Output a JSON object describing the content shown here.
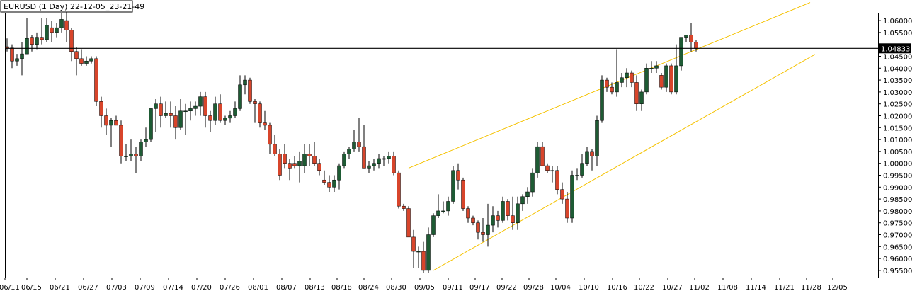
{
  "window": {
    "title": "EURUSD (1 Day) 22-12-05_23-21-49"
  },
  "colors": {
    "bull": "#1e5b34",
    "bear": "#d8452b",
    "wick": "#000000",
    "channel": "#f5c200",
    "price_line": "#000000",
    "price_tag_bg": "#000000"
  },
  "chart_data": {
    "type": "candlestick",
    "title": "EURUSD (1 Day) 22-12-05_23-21-49",
    "symbol": "EURUSD",
    "timeframe": "1 Day",
    "current_price": "1.04833",
    "ylim": [
      0.952,
      1.063
    ],
    "yticks": [
      "1.06000",
      "1.05500",
      "1.05000",
      "1.04500",
      "1.04000",
      "1.03500",
      "1.03000",
      "1.02500",
      "1.02000",
      "1.01500",
      "1.01000",
      "1.00500",
      "1.00000",
      "0.99500",
      "0.99000",
      "0.98500",
      "0.98000",
      "0.97500",
      "0.97000",
      "0.96500",
      "0.96000",
      "0.95500"
    ],
    "xticks": [
      "06/11",
      "06/15",
      "06/21",
      "06/27",
      "07/03",
      "07/09",
      "07/14",
      "07/20",
      "07/26",
      "08/01",
      "08/07",
      "08/13",
      "08/18",
      "08/24",
      "08/30",
      "09/05",
      "09/11",
      "09/17",
      "09/22",
      "09/28",
      "10/04",
      "10/10",
      "10/16",
      "10/22",
      "10/27",
      "11/02",
      "11/08",
      "11/14",
      "11/21",
      "11/28",
      "12/05"
    ],
    "candles": [
      [
        1.049,
        1.0525,
        1.047,
        1.0485
      ],
      [
        1.0485,
        1.05,
        1.04,
        1.043
      ],
      [
        1.043,
        1.046,
        1.041,
        1.044
      ],
      [
        1.044,
        1.051,
        1.037,
        1.046
      ],
      [
        1.046,
        1.061,
        1.046,
        1.0525
      ],
      [
        1.053,
        1.054,
        1.047,
        1.05
      ],
      [
        1.05,
        1.055,
        1.048,
        1.053
      ],
      [
        1.053,
        1.061,
        1.05,
        1.052
      ],
      [
        1.052,
        1.061,
        1.051,
        1.058
      ],
      [
        1.057,
        1.06,
        1.051,
        1.055
      ],
      [
        1.055,
        1.059,
        1.053,
        1.057
      ],
      [
        1.057,
        1.063,
        1.055,
        1.0605
      ],
      [
        1.06,
        1.064,
        1.051,
        1.056
      ],
      [
        1.056,
        1.057,
        1.043,
        1.047
      ],
      [
        1.047,
        1.049,
        1.037,
        1.044
      ],
      [
        1.044,
        1.048,
        1.041,
        1.042
      ],
      [
        1.042,
        1.045,
        1.041,
        1.043
      ],
      [
        1.043,
        1.045,
        1.042,
        1.044
      ],
      [
        1.044,
        1.045,
        1.024,
        1.026
      ],
      [
        1.026,
        1.028,
        1.015,
        1.02
      ],
      [
        1.02,
        1.023,
        1.012,
        1.016
      ],
      [
        1.016,
        1.019,
        1.007,
        1.018
      ],
      [
        1.018,
        1.02,
        1.016,
        1.016
      ],
      [
        1.016,
        1.018,
        1.0,
        1.003
      ],
      [
        1.003,
        1.008,
        1.001,
        1.003
      ],
      [
        1.003,
        1.01,
        1.001,
        1.004
      ],
      [
        1.004,
        1.007,
        0.996,
        1.003
      ],
      [
        1.003,
        1.01,
        1.001,
        1.009
      ],
      [
        1.009,
        1.015,
        1.007,
        1.01
      ],
      [
        1.01,
        1.023,
        1.009,
        1.023
      ],
      [
        1.023,
        1.027,
        1.013,
        1.025
      ],
      [
        1.025,
        1.028,
        1.015,
        1.02
      ],
      [
        1.02,
        1.026,
        1.019,
        1.021
      ],
      [
        1.021,
        1.026,
        1.015,
        1.02
      ],
      [
        1.02,
        1.024,
        1.01,
        1.015
      ],
      [
        1.015,
        1.027,
        1.014,
        1.022
      ],
      [
        1.022,
        1.025,
        1.012,
        1.022
      ],
      [
        1.022,
        1.026,
        1.018,
        1.023
      ],
      [
        1.023,
        1.026,
        1.02,
        1.024
      ],
      [
        1.024,
        1.03,
        1.02,
        1.028
      ],
      [
        1.028,
        1.03,
        1.015,
        1.02
      ],
      [
        1.02,
        1.022,
        1.013,
        1.018
      ],
      [
        1.018,
        1.028,
        1.016,
        1.025
      ],
      [
        1.025,
        1.029,
        1.017,
        1.018
      ],
      [
        1.018,
        1.02,
        1.016,
        1.019
      ],
      [
        1.019,
        1.022,
        1.017,
        1.02
      ],
      [
        1.02,
        1.026,
        1.019,
        1.023
      ],
      [
        1.023,
        1.037,
        1.022,
        1.033
      ],
      [
        1.033,
        1.037,
        1.029,
        1.035
      ],
      [
        1.035,
        1.036,
        1.025,
        1.026
      ],
      [
        1.026,
        1.027,
        1.017,
        1.025
      ],
      [
        1.025,
        1.026,
        1.015,
        1.017
      ],
      [
        1.017,
        1.022,
        1.014,
        1.016
      ],
      [
        1.016,
        1.017,
        1.004,
        1.008
      ],
      [
        1.008,
        1.012,
        1.003,
        1.004
      ],
      [
        1.004,
        1.006,
        0.993,
        0.995
      ],
      [
        1.004,
        1.008,
        0.998,
        1.0
      ],
      [
        1.0,
        1.002,
        0.993,
        0.998
      ],
      [
        1.0,
        1.003,
        0.998,
        0.999
      ],
      [
        0.999,
        1.005,
        0.992,
        1.001
      ],
      [
        0.999,
        1.008,
        0.996,
        1.004
      ],
      [
        1.004,
        1.008,
        0.999,
        1.003
      ],
      [
        1.003,
        1.009,
        0.999,
        1.0
      ],
      [
        1.0,
        1.002,
        0.995,
        0.997
      ],
      [
        0.993,
        0.997,
        0.991,
        0.992
      ],
      [
        0.992,
        0.995,
        0.988,
        0.99
      ],
      [
        0.99,
        0.995,
        0.988,
        0.993
      ],
      [
        0.993,
        1.0,
        0.989,
        0.999
      ],
      [
        0.999,
        1.005,
        0.998,
        1.004
      ],
      [
        1.004,
        1.007,
        1.002,
        1.006
      ],
      [
        1.006,
        1.014,
        1.005,
        1.009
      ],
      [
        1.009,
        1.019,
        1.005,
        1.007
      ],
      [
        1.007,
        1.016,
        0.998,
        0.998
      ],
      [
        0.998,
        1.001,
        0.996,
        0.999
      ],
      [
        0.999,
        1.002,
        0.997,
        1.0
      ],
      [
        1.0,
        1.004,
        0.998,
        1.002
      ],
      [
        1.002,
        1.003,
        0.999,
        1.002
      ],
      [
        1.002,
        1.005,
        1.0,
        1.003
      ],
      [
        1.003,
        1.005,
        0.995,
        0.996
      ],
      [
        0.996,
        0.997,
        0.981,
        0.982
      ],
      [
        0.982,
        0.983,
        0.98,
        0.981
      ],
      [
        0.981,
        0.982,
        0.969,
        0.969
      ],
      [
        0.969,
        0.972,
        0.956,
        0.963
      ],
      [
        0.963,
        0.965,
        0.956,
        0.963
      ],
      [
        0.963,
        0.967,
        0.954,
        0.955
      ],
      [
        0.955,
        0.973,
        0.954,
        0.97
      ],
      [
        0.97,
        0.979,
        0.969,
        0.978
      ],
      [
        0.978,
        0.987,
        0.977,
        0.98
      ],
      [
        0.98,
        0.984,
        0.979,
        0.98
      ],
      [
        0.98,
        0.986,
        0.978,
        0.984
      ],
      [
        0.984,
        0.999,
        0.983,
        0.997
      ],
      [
        0.997,
        1.0,
        0.989,
        0.993
      ],
      [
        0.993,
        0.994,
        0.98,
        0.981
      ],
      [
        0.981,
        0.982,
        0.975,
        0.977
      ],
      [
        0.977,
        0.978,
        0.974,
        0.975
      ],
      [
        0.975,
        0.976,
        0.968,
        0.971
      ],
      [
        0.971,
        0.977,
        0.967,
        0.97
      ],
      [
        0.97,
        0.983,
        0.965,
        0.974
      ],
      [
        0.974,
        0.982,
        0.971,
        0.978
      ],
      [
        0.978,
        0.98,
        0.973,
        0.976
      ],
      [
        0.976,
        0.986,
        0.975,
        0.984
      ],
      [
        0.984,
        0.985,
        0.976,
        0.978
      ],
      [
        0.978,
        0.986,
        0.972,
        0.975
      ],
      [
        0.975,
        0.986,
        0.972,
        0.983
      ],
      [
        0.983,
        0.987,
        0.98,
        0.986
      ],
      [
        0.986,
        0.99,
        0.983,
        0.988
      ],
      [
        0.988,
        0.998,
        0.986,
        0.996
      ],
      [
        0.996,
        1.009,
        0.994,
        1.007
      ],
      [
        1.007,
        1.009,
        0.999,
        0.999
      ],
      [
        0.999,
        1.0,
        0.996,
        0.997
      ],
      [
        0.997,
        0.999,
        0.992,
        0.997
      ],
      [
        0.997,
        0.999,
        0.987,
        0.989
      ],
      [
        0.989,
        0.992,
        0.983,
        0.985
      ],
      [
        0.985,
        0.988,
        0.975,
        0.977
      ],
      [
        0.977,
        0.997,
        0.975,
        0.995
      ],
      [
        0.995,
        0.998,
        0.993,
        0.995
      ],
      [
        0.995,
        1.004,
        0.994,
        1.0
      ],
      [
        1.0,
        1.007,
        0.999,
        1.005
      ],
      [
        1.005,
        1.006,
        0.997,
        1.003
      ],
      [
        1.003,
        1.02,
        0.999,
        1.018
      ],
      [
        1.018,
        1.037,
        1.017,
        1.035
      ],
      [
        1.035,
        1.036,
        1.03,
        1.032
      ],
      [
        1.032,
        1.034,
        1.029,
        1.03
      ],
      [
        1.03,
        1.048,
        1.028,
        1.034
      ],
      [
        1.034,
        1.038,
        1.032,
        1.036
      ],
      [
        1.036,
        1.04,
        1.032,
        1.038
      ],
      [
        1.038,
        1.039,
        1.032,
        1.034
      ],
      [
        1.034,
        1.037,
        1.022,
        1.025
      ],
      [
        1.025,
        1.031,
        1.022,
        1.03
      ],
      [
        1.03,
        1.042,
        1.029,
        1.04
      ],
      [
        1.04,
        1.043,
        1.038,
        1.04
      ],
      [
        1.04,
        1.043,
        1.038,
        1.041
      ],
      [
        1.037,
        1.038,
        1.031,
        1.032
      ],
      [
        1.032,
        1.042,
        1.03,
        1.041
      ],
      [
        1.041,
        1.042,
        1.029,
        1.03
      ],
      [
        1.03,
        1.05,
        1.029,
        1.041
      ],
      [
        1.041,
        1.053,
        1.039,
        1.053
      ],
      [
        1.053,
        1.054,
        1.051,
        1.054
      ],
      [
        1.054,
        1.059,
        1.047,
        1.051
      ],
      [
        1.051,
        1.052,
        1.047,
        1.0483
      ]
    ],
    "lines": [
      {
        "name": "channel-upper",
        "from": [
          81,
          0.998
        ],
        "to": [
          152,
          1.059
        ]
      },
      {
        "name": "channel-lower",
        "from": [
          86,
          0.955
        ],
        "to": [
          153,
          1.034
        ]
      }
    ],
    "grid": false
  }
}
